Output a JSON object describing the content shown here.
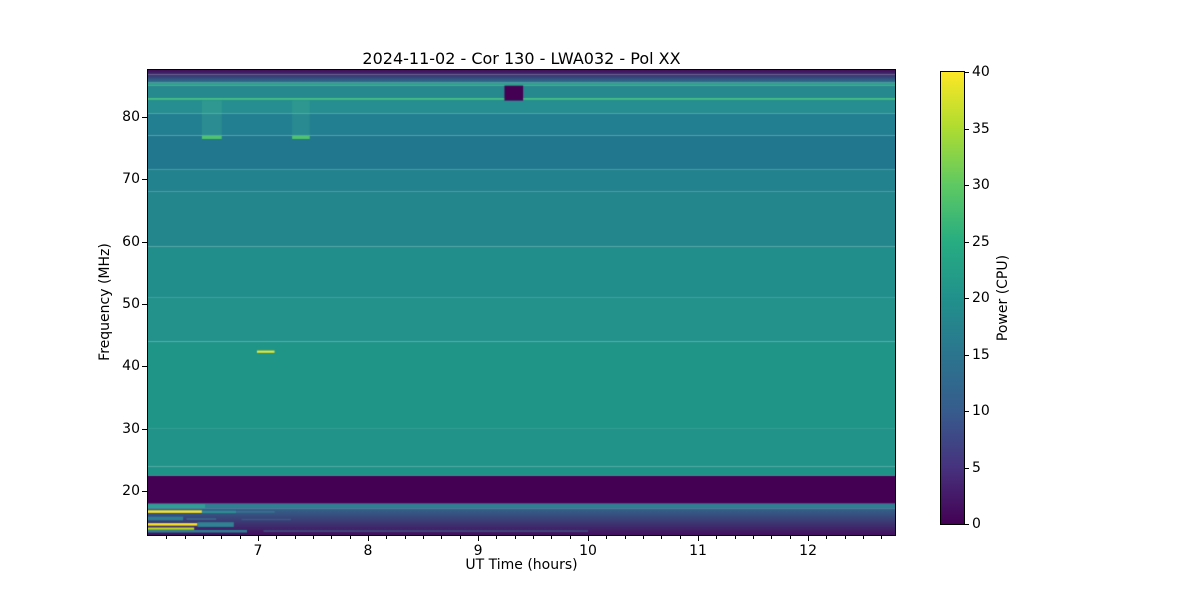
{
  "chart_data": {
    "type": "heatmap",
    "title": "2024-11-02 - Cor 130 - LWA032 - Pol XX",
    "xlabel": "UT Time (hours)",
    "ylabel": "Frequency (MHz)",
    "xlim": [
      6.0,
      12.79
    ],
    "ylim": [
      13.0,
      87.5
    ],
    "x_ticks": [
      7,
      8,
      9,
      10,
      11,
      12
    ],
    "x_minor_step_hours": 0.166667,
    "y_ticks": [
      20,
      30,
      40,
      50,
      60,
      70,
      80
    ],
    "colormap": "viridis",
    "colorbar": {
      "label": "Power (CPU)",
      "vmin": 0,
      "vmax": 40,
      "ticks": [
        0,
        5,
        10,
        15,
        20,
        25,
        30,
        35,
        40
      ],
      "stops": [
        {
          "v": 0,
          "color": "#440154"
        },
        {
          "v": 5,
          "color": "#46327e"
        },
        {
          "v": 10,
          "color": "#365c8d"
        },
        {
          "v": 15,
          "color": "#2b758e"
        },
        {
          "v": 20,
          "color": "#21918c"
        },
        {
          "v": 25,
          "color": "#27ad81"
        },
        {
          "v": 30,
          "color": "#5ec962"
        },
        {
          "v": 35,
          "color": "#addc30"
        },
        {
          "v": 40,
          "color": "#fde725"
        }
      ]
    },
    "background_bands": [
      {
        "f": [
          87.5,
          86.8
        ],
        "colors": [
          "#430d59",
          "#3d2f6d"
        ],
        "note": "dark top edge, power ~0-5"
      },
      {
        "f": [
          86.8,
          85.9
        ],
        "colors": [
          "#3d2f6d",
          "#2f5b85"
        ],
        "note": "gradient to blue"
      },
      {
        "f": [
          85.9,
          85.45
        ],
        "colors": [
          "#2f5b85",
          "#27808e"
        ],
        "note": "blue to teal"
      },
      {
        "f": [
          85.45,
          85.05
        ],
        "color": "#2da18b",
        "note": "light green band ~85 MHz"
      },
      {
        "f": [
          85.05,
          83.0
        ],
        "color": "#26898d"
      },
      {
        "f": [
          83.0,
          82.7
        ],
        "color": "#38b878",
        "note": "bright green line ~82.8 MHz, power ~27"
      },
      {
        "f": [
          82.7,
          80.5
        ],
        "color": "#268e90"
      },
      {
        "f": [
          80.5,
          77.0
        ],
        "color": "#227f91"
      },
      {
        "f": [
          77.0,
          71.6
        ],
        "color": "#21788e",
        "note": "darker blue band, power ~15"
      },
      {
        "f": [
          71.6,
          68.0
        ],
        "color": "#22828e"
      },
      {
        "f": [
          68.0,
          59.2
        ],
        "color": "#23868d"
      },
      {
        "f": [
          59.2,
          51.0
        ],
        "color": "#218e8b"
      },
      {
        "f": [
          51.0,
          44.0
        ],
        "color": "#22928a"
      },
      {
        "f": [
          44.0,
          30.0
        ],
        "color": "#1f9588",
        "note": "greener teal, power ~21"
      },
      {
        "f": [
          30.0,
          24.0
        ],
        "color": "#219389"
      },
      {
        "f": [
          24.0,
          22.5
        ],
        "color": "#1f9287"
      },
      {
        "f": [
          22.5,
          18.0
        ],
        "color": "#440154",
        "note": "flagged purple band 18-22.5 MHz, power 0"
      },
      {
        "f": [
          18.0,
          17.3
        ],
        "color": "#2d7f91",
        "note": "teal-blue line full width"
      },
      {
        "f": [
          17.3,
          13.0
        ],
        "colors": [
          "#33658b",
          "#440f5e"
        ],
        "note": "bottom gradient to dark purple"
      }
    ],
    "features": [
      {
        "name": "dark-block",
        "t": [
          9.24,
          9.41
        ],
        "f": [
          85.0,
          82.6
        ],
        "color": "#440154"
      },
      {
        "name": "rfi-column-1",
        "t": [
          6.49,
          6.67
        ],
        "f": [
          82.6,
          76.9
        ],
        "color": "rgba(90,205,150,0.18)"
      },
      {
        "name": "rfi-dash-1",
        "t": [
          6.49,
          6.67
        ],
        "f": [
          76.95,
          76.45
        ],
        "color": "#4fc46c"
      },
      {
        "name": "rfi-column-2",
        "t": [
          7.31,
          7.47
        ],
        "f": [
          82.6,
          76.9
        ],
        "color": "rgba(90,205,150,0.15)"
      },
      {
        "name": "rfi-dash-2",
        "t": [
          7.31,
          7.47
        ],
        "f": [
          76.95,
          76.45
        ],
        "color": "#4fc46c"
      },
      {
        "name": "burst-dash-42mhz",
        "t": [
          6.99,
          7.15
        ],
        "f": [
          42.55,
          42.2
        ],
        "color": "#f2e829"
      },
      {
        "name": "bl-bright-teal",
        "t": [
          6.0,
          6.52
        ],
        "f": [
          17.95,
          17.3
        ],
        "color": "#2f9f95"
      },
      {
        "name": "bl-yellow-1",
        "t": [
          6.0,
          6.49
        ],
        "f": [
          16.95,
          16.55
        ],
        "color": "#fde725"
      },
      {
        "name": "bl-teal-tail-1",
        "t": [
          6.49,
          6.8
        ],
        "f": [
          16.9,
          16.5
        ],
        "color": "#2e8c93"
      },
      {
        "name": "bl-faint-tail-1",
        "t": [
          6.8,
          7.15
        ],
        "f": [
          16.85,
          16.55
        ],
        "color": "rgba(60,140,160,0.45)"
      },
      {
        "name": "bl-teal-2",
        "t": [
          6.0,
          6.32
        ],
        "f": [
          15.95,
          15.35
        ],
        "color": "#2e7e92"
      },
      {
        "name": "bl-teal-dash-2a",
        "t": [
          6.35,
          6.62
        ],
        "f": [
          15.7,
          15.4
        ],
        "color": "rgba(58,125,150,0.55)"
      },
      {
        "name": "bl-teal-dash-2b",
        "t": [
          6.85,
          7.3
        ],
        "f": [
          15.6,
          15.4
        ],
        "color": "rgba(58,125,150,0.4)"
      },
      {
        "name": "bl-yellow-2",
        "t": [
          6.0,
          6.45
        ],
        "f": [
          14.9,
          14.5
        ],
        "color": "#fde725"
      },
      {
        "name": "bl-teal-block-2",
        "t": [
          6.45,
          6.78
        ],
        "f": [
          15.05,
          14.3
        ],
        "color": "#2f8392"
      },
      {
        "name": "bl-yellowgreen",
        "t": [
          6.0,
          6.42
        ],
        "f": [
          14.2,
          13.85
        ],
        "color": "#c6e01f"
      },
      {
        "name": "bl-teal-strip",
        "t": [
          6.0,
          6.9
        ],
        "f": [
          13.8,
          13.4
        ],
        "color": "#2e8092"
      },
      {
        "name": "bl-faint-line",
        "t": [
          7.05,
          10.0
        ],
        "f": [
          13.75,
          13.55
        ],
        "color": "rgba(62,135,160,0.5)"
      }
    ]
  }
}
